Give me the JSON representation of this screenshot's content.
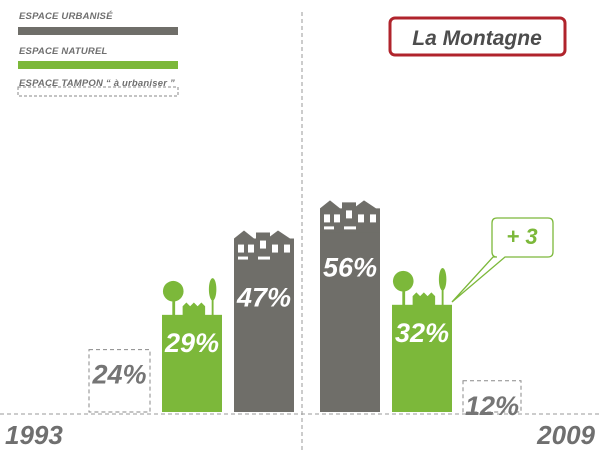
{
  "title": "La Montagne",
  "colors": {
    "urbanise": "#6f6e69",
    "naturel": "#7cb83a",
    "tampon_border": "#8a8a8a",
    "title_border": "#b0242c",
    "annotation": "#7cb83a"
  },
  "legend": [
    {
      "label": "ESPACE URBANISÉ",
      "style": "solid-grey"
    },
    {
      "label": "ESPACE NATUREL",
      "style": "solid-green"
    },
    {
      "label": "ESPACE TAMPON “ à urbaniser ”",
      "style": "dashed-outline"
    }
  ],
  "chart_data": {
    "type": "bar",
    "title": "La Montagne",
    "categories": [
      "1993",
      "2009"
    ],
    "series": [
      {
        "name": "ESPACE TAMPON “ à urbaniser ”",
        "values": [
          24,
          12
        ],
        "labels": [
          "24%",
          "12%"
        ]
      },
      {
        "name": "ESPACE NATUREL",
        "values": [
          29,
          32
        ],
        "labels": [
          "29%",
          "32%"
        ]
      },
      {
        "name": "ESPACE URBANISÉ",
        "values": [
          47,
          56
        ],
        "labels": [
          "47%",
          "56%"
        ]
      }
    ],
    "annotations": [
      {
        "text": "+ 3",
        "target": "ESPACE NATUREL 2009"
      }
    ],
    "grid": false,
    "legend_position": "top-left"
  }
}
